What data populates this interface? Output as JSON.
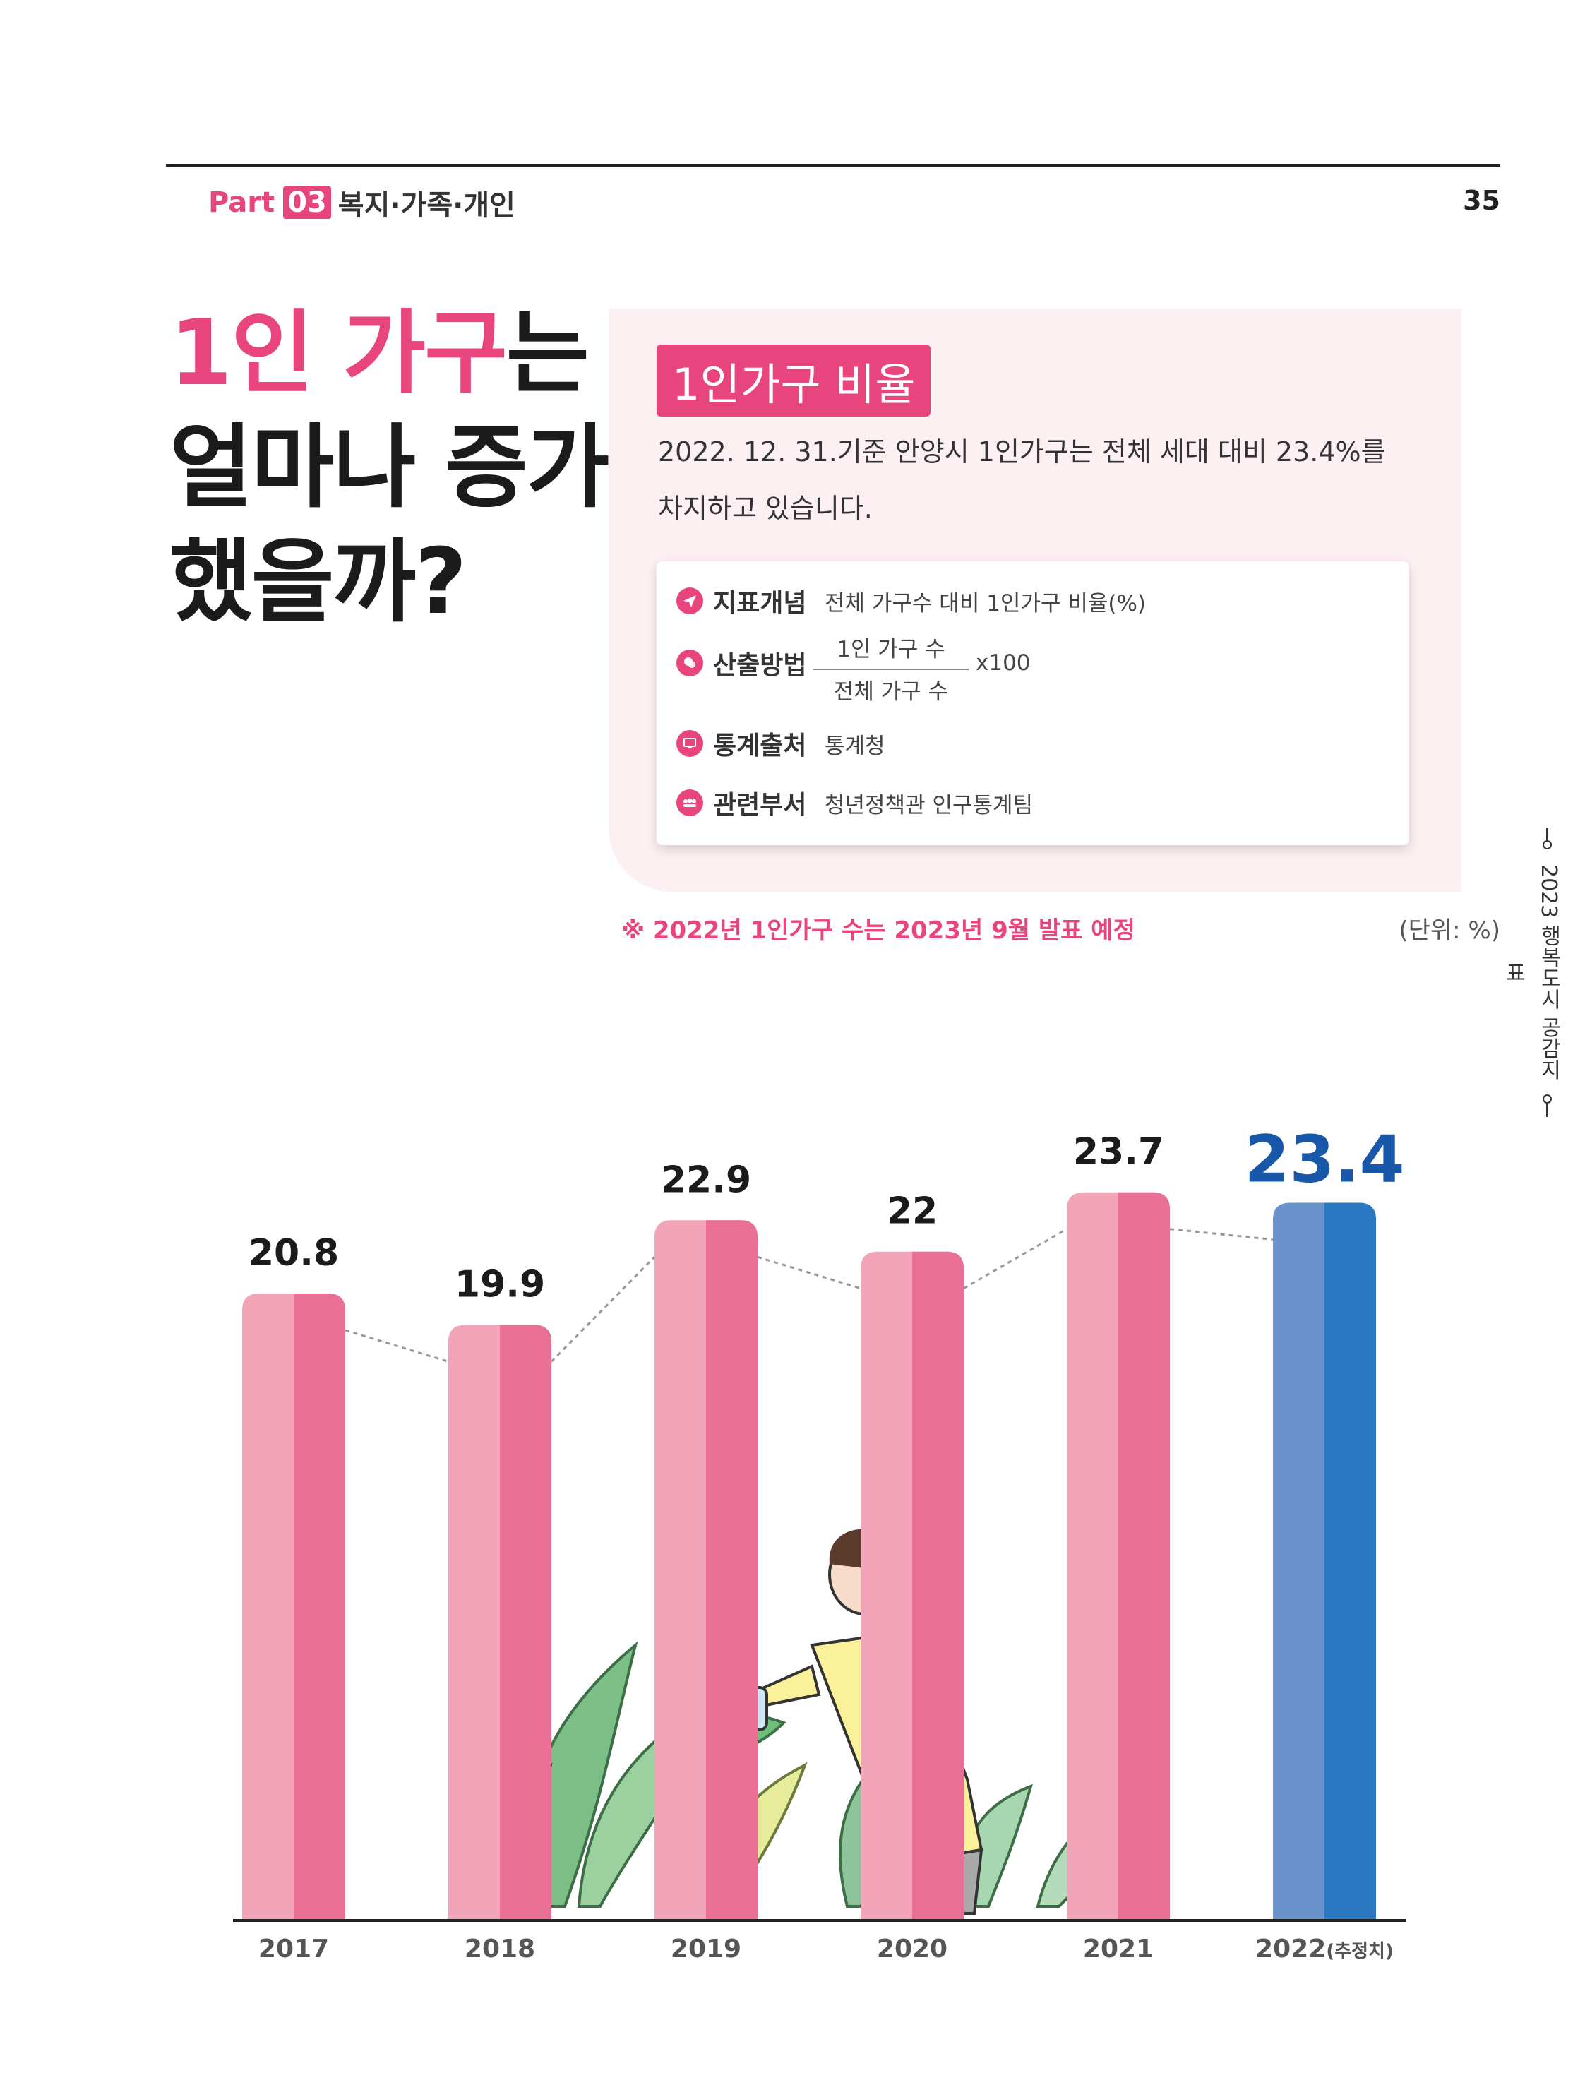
{
  "header": {
    "part_word": "Part",
    "part_number": "03",
    "part_title": "복지·가족·개인",
    "page_number": "35"
  },
  "side_label": "2023 행복도시 공감지표",
  "title": {
    "line1_highlight": "1인 가구",
    "line1_rest": "는",
    "line2": "얼마나 증가",
    "line3": "했을까?"
  },
  "info": {
    "heading": "1인가구 비율",
    "desc_line1": "2022. 12. 31.기준 안양시 1인가구는 전체 세대 대비 23.4%를",
    "desc_line2": "차지하고 있습니다.",
    "rows": [
      {
        "icon": "paper-plane-icon",
        "label": "지표개념",
        "value": "전체 가구수 대비 1인가구 비율(%)"
      },
      {
        "icon": "chat-bubble-icon",
        "label": "산출방법",
        "numerator": "1인 가구 수",
        "denominator": "전체 가구 수",
        "multiplier": "x100"
      },
      {
        "icon": "monitor-icon",
        "label": "통계출처",
        "value": "통계청"
      },
      {
        "icon": "people-icon",
        "label": "관련부서",
        "value": "청년정책관 인구통계팀"
      }
    ]
  },
  "footnote": "※  2022년 1인가구 수는 2023년 9월 발표 예정",
  "unit": "(단위: %)",
  "chart_data": {
    "type": "bar",
    "categories": [
      "2017",
      "2018",
      "2019",
      "2020",
      "2021",
      "2022"
    ],
    "category_suffix": [
      "",
      "",
      "",
      "",
      "",
      "(추정치)"
    ],
    "values": [
      20.8,
      19.9,
      22.9,
      22,
      23.7,
      23.4
    ],
    "value_labels": [
      "20.8",
      "19.9",
      "22.9",
      "22",
      "23.7",
      "23.4"
    ],
    "estimated_index": 5,
    "trend_line": "dotted",
    "colors": {
      "bar_light": "#f2a5b8",
      "bar_dark": "#e96f94",
      "est_light": "#6a93cc",
      "est_dark": "#2a78c2",
      "label_normal": "#1b1b1b",
      "label_estimate": "#1958a8"
    }
  }
}
